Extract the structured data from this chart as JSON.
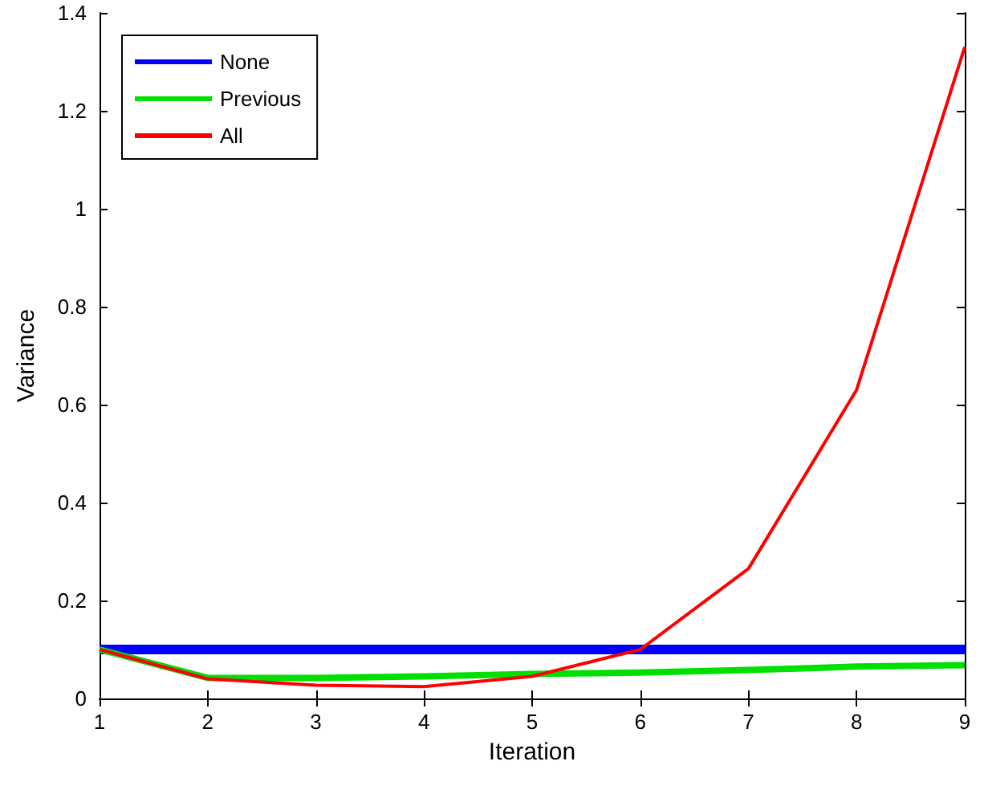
{
  "chart_data": {
    "type": "line",
    "xlabel": "Iteration",
    "ylabel": "Variance",
    "x": [
      1,
      2,
      3,
      4,
      5,
      6,
      7,
      8,
      9
    ],
    "series": [
      {
        "name": "None",
        "color": "#0000ff",
        "values": [
          0.1,
          0.1,
          0.1,
          0.1,
          0.1,
          0.1,
          0.1,
          0.1,
          0.1
        ]
      },
      {
        "name": "Previous",
        "color": "#00e000",
        "values": [
          0.1,
          0.042,
          0.042,
          0.045,
          0.05,
          0.053,
          0.058,
          0.065,
          0.068
        ]
      },
      {
        "name": "All",
        "color": "#ff0000",
        "values": [
          0.1,
          0.04,
          0.027,
          0.024,
          0.045,
          0.1,
          0.265,
          0.63,
          1.33
        ]
      }
    ],
    "xlim": [
      1,
      9
    ],
    "xticks": [
      1,
      2,
      3,
      4,
      5,
      6,
      7,
      8,
      9
    ],
    "ylim": [
      0,
      1.4
    ],
    "yticks": [
      0,
      0.2,
      0.4,
      0.6,
      0.8,
      1,
      1.2,
      1.4
    ],
    "grid": false,
    "legend": "top left",
    "marker": "none",
    "line_style": "solid"
  }
}
